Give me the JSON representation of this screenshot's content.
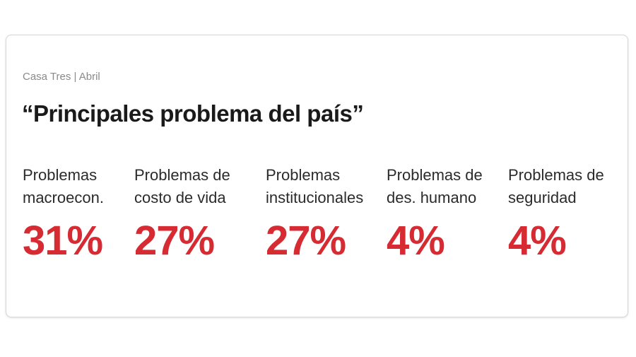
{
  "header": {
    "source": "Casa Tres | Abril",
    "title": "“Principales problema del país”"
  },
  "colors": {
    "accent": "#d62b33",
    "text": "#2b2b2b",
    "muted": "#8a8a8a"
  },
  "chart_data": {
    "type": "table",
    "title": "“Principales problema del país”",
    "subtitle": "Casa Tres | Abril",
    "categories": [
      [
        "Problemas",
        "macroecon."
      ],
      [
        "Problemas de",
        "costo de vida"
      ],
      [
        "Problemas",
        "institucionales"
      ],
      [
        "Problemas de",
        "des. humano"
      ],
      [
        "Problemas de",
        "seguridad"
      ]
    ],
    "values": [
      31,
      27,
      27,
      4,
      4
    ],
    "value_labels": [
      "31%",
      "27%",
      "27%",
      "4%",
      "4%"
    ],
    "unit": "%"
  }
}
